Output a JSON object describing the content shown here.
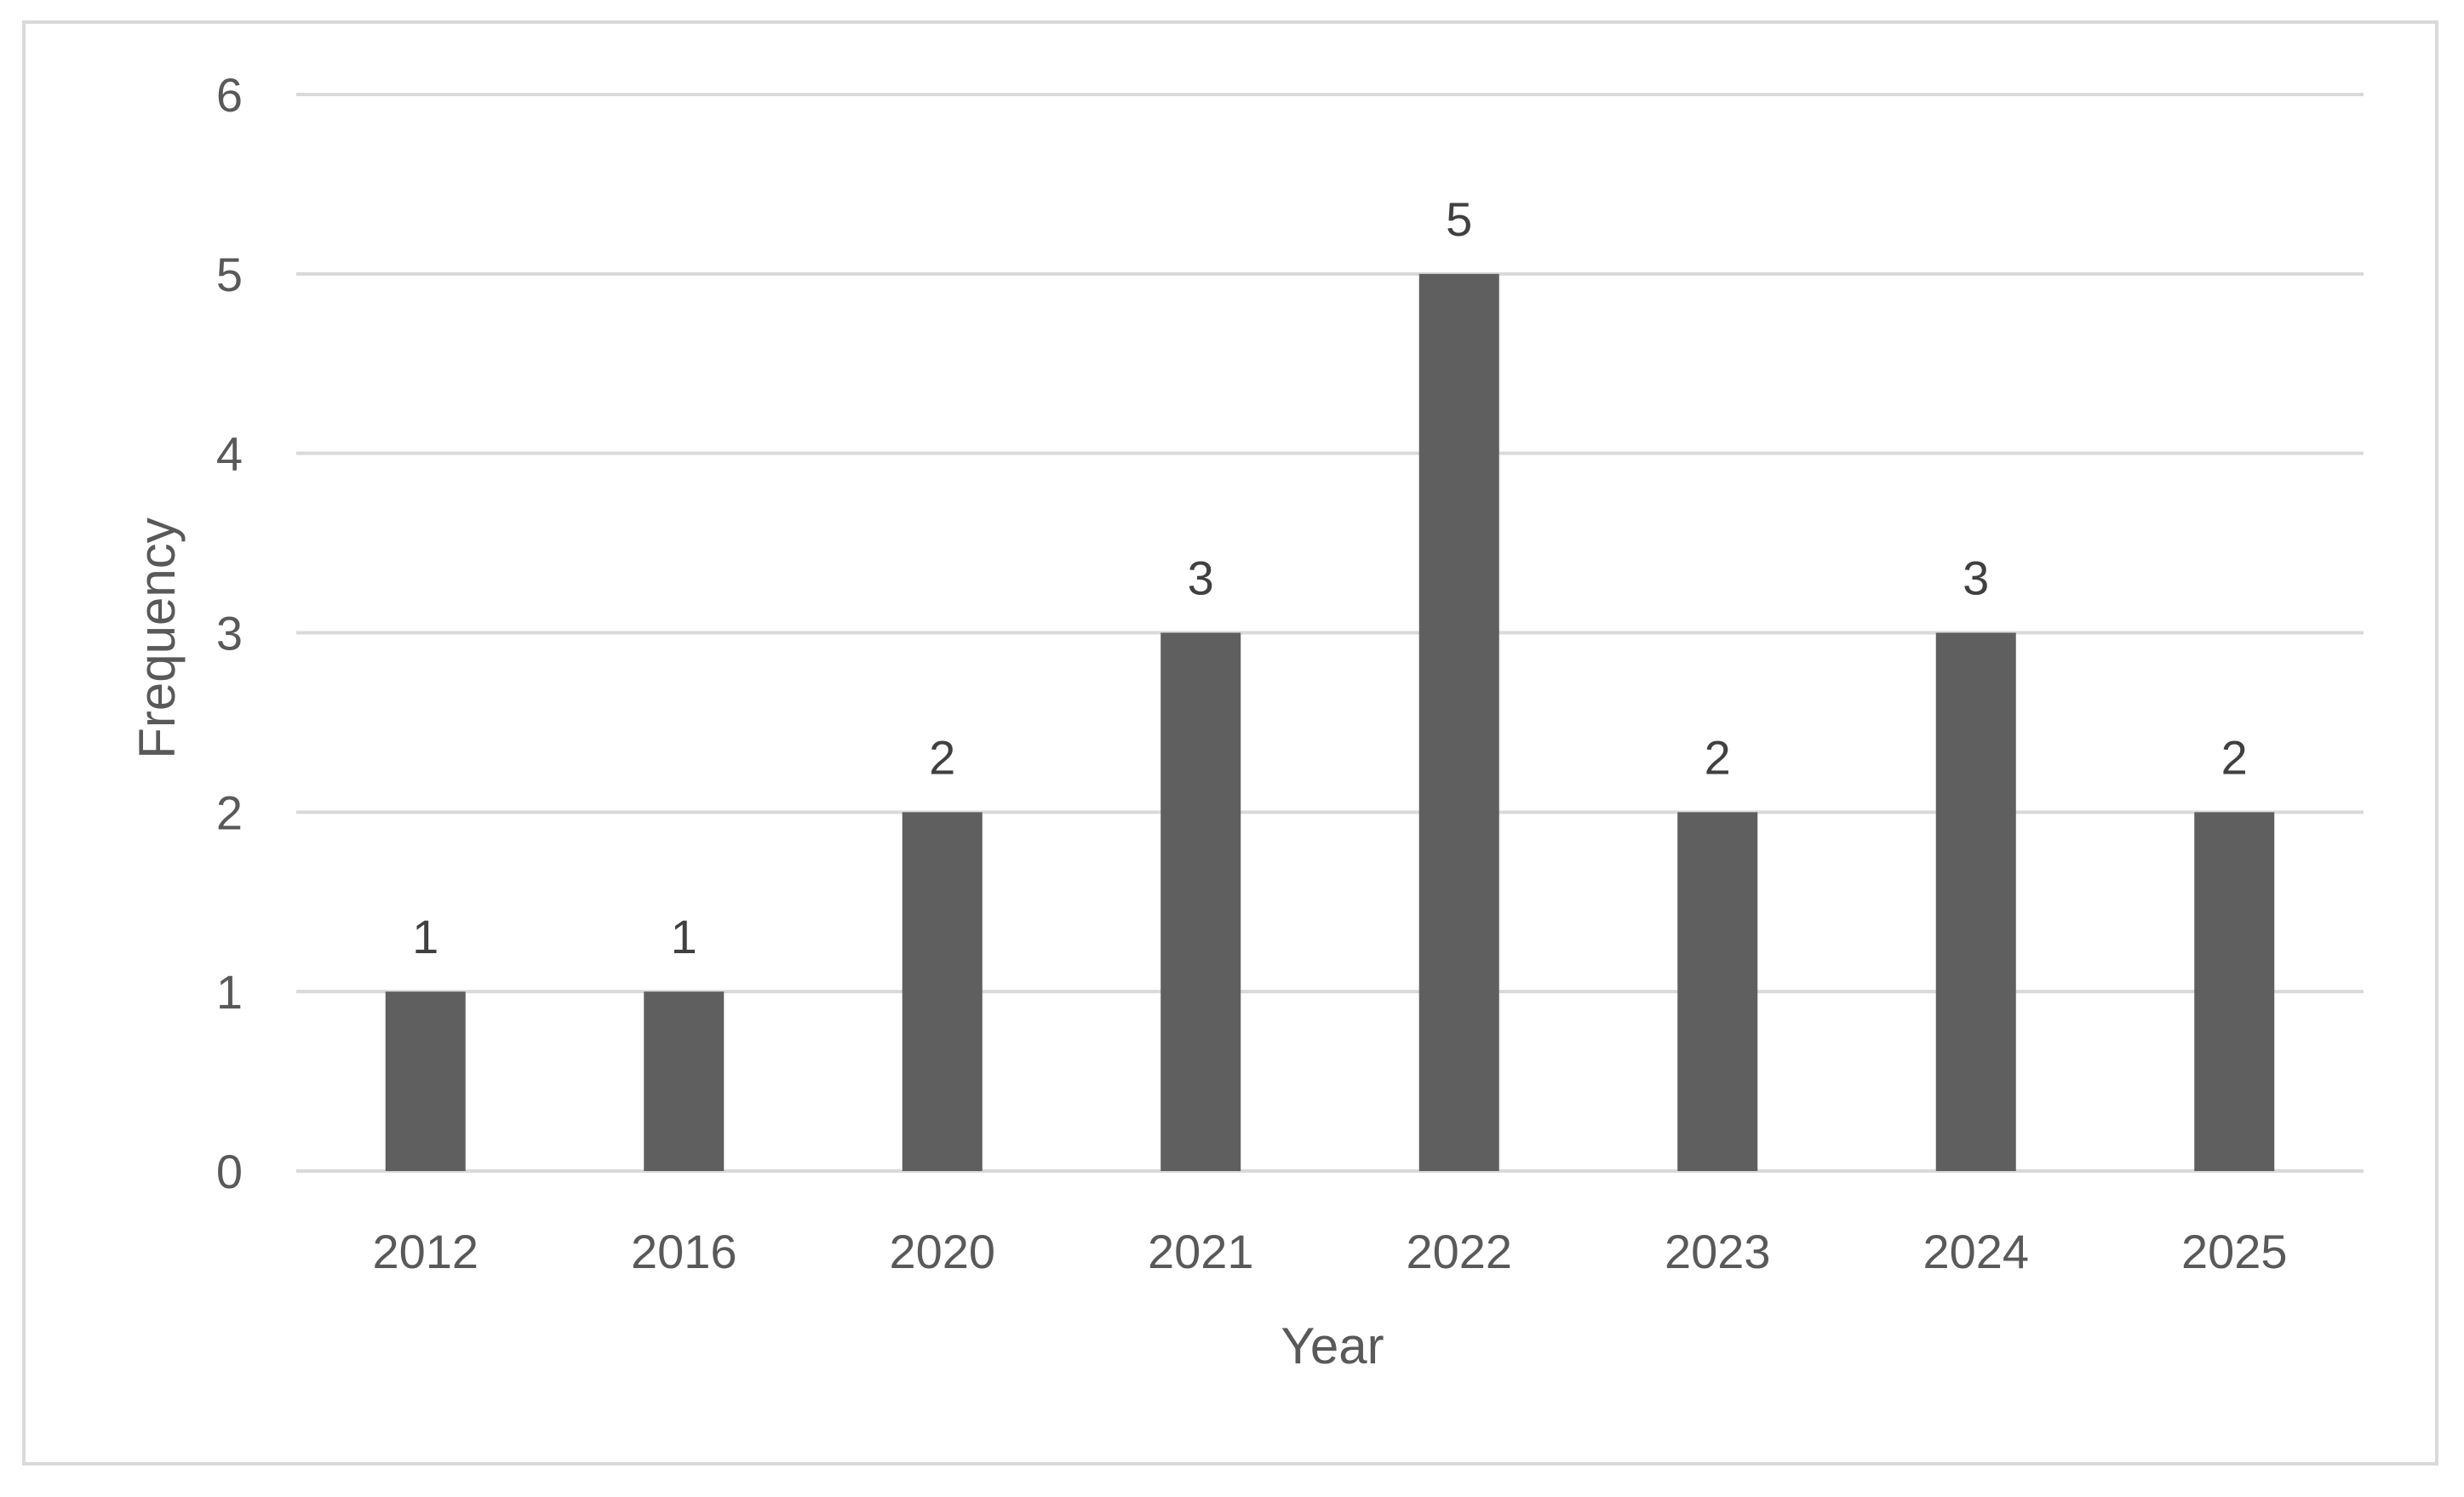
{
  "chart_data": {
    "type": "bar",
    "categories": [
      "2012",
      "2016",
      "2020",
      "2021",
      "2022",
      "2023",
      "2024",
      "2025"
    ],
    "values": [
      1,
      1,
      2,
      3,
      5,
      2,
      3,
      2
    ],
    "data_labels": [
      "1",
      "1",
      "2",
      "3",
      "5",
      "2",
      "3",
      "2"
    ],
    "title": "",
    "xlabel": "Year",
    "ylabel": "Frequency",
    "ylim": [
      0,
      6
    ],
    "yticks": [
      0,
      1,
      2,
      3,
      4,
      5,
      6
    ],
    "ytick_labels": [
      "0",
      "1",
      "2",
      "3",
      "4",
      "5",
      "6"
    ],
    "grid": true,
    "legend": "none"
  },
  "colors": {
    "bar": "#5f5f5f",
    "grid": "#d9d9d9",
    "text": "#595959",
    "data_label": "#404040",
    "border": "#d9d9d9"
  }
}
